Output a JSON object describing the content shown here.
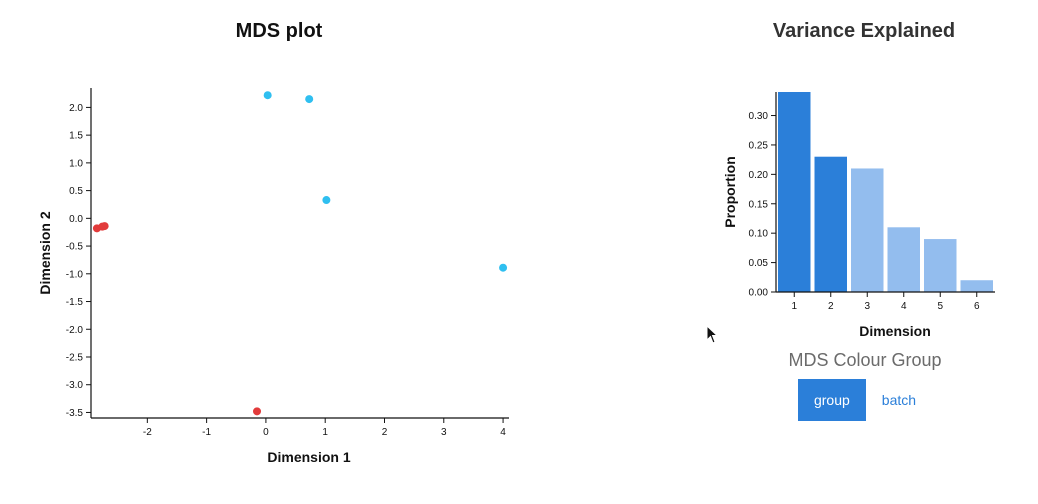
{
  "chart_data": [
    {
      "type": "scatter",
      "title": "MDS plot",
      "xlabel": "Dimension 1",
      "ylabel": "Dimension 2",
      "xlim": [
        -2.95,
        4.1
      ],
      "ylim": [
        -3.6,
        2.35
      ],
      "xticks": [
        -2,
        -1,
        0,
        1,
        2,
        3,
        4
      ],
      "yticks": [
        2.0,
        1.5,
        1.0,
        0.5,
        0.0,
        -0.5,
        -1.0,
        -1.5,
        -2.0,
        -2.5,
        -3.0,
        -3.5
      ],
      "series": [
        {
          "color": "#e23b3b",
          "points": [
            {
              "x": -2.85,
              "y": -0.18
            },
            {
              "x": -2.76,
              "y": -0.15
            },
            {
              "x": -2.72,
              "y": -0.14
            },
            {
              "x": -0.15,
              "y": -3.48
            }
          ]
        },
        {
          "color": "#2fbff0",
          "points": [
            {
              "x": 0.03,
              "y": 2.22
            },
            {
              "x": 0.73,
              "y": 2.15
            },
            {
              "x": 1.02,
              "y": 0.33
            },
            {
              "x": 4.0,
              "y": -0.89
            }
          ]
        }
      ]
    },
    {
      "type": "bar",
      "title": "Variance Explained",
      "xlabel": "Dimension",
      "ylabel": "Proportion",
      "ylim": [
        0,
        0.34
      ],
      "yticks": [
        0.0,
        0.05,
        0.1,
        0.15,
        0.2,
        0.25,
        0.3
      ],
      "categories": [
        "1",
        "2",
        "3",
        "4",
        "5",
        "6"
      ],
      "values": [
        0.34,
        0.23,
        0.21,
        0.11,
        0.09,
        0.02
      ],
      "highlighted": [
        true,
        true,
        false,
        false,
        false,
        false
      ],
      "colors": {
        "highlight": "#2b7fd9",
        "normal": "#93bdee"
      }
    }
  ],
  "controls": {
    "title": "MDS Colour Group",
    "buttons": [
      {
        "label": "group",
        "active": true
      },
      {
        "label": "batch",
        "active": false
      }
    ]
  }
}
